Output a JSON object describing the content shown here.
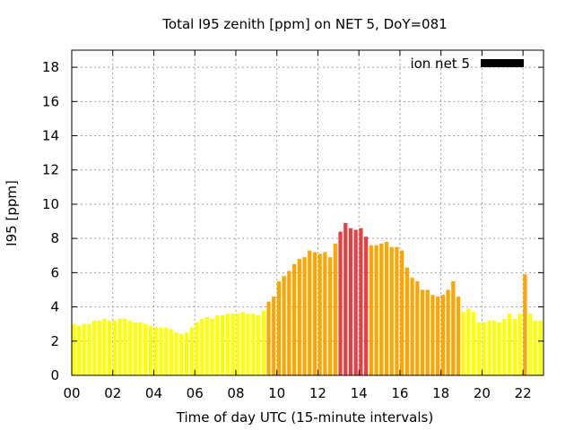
{
  "chart_data": {
    "type": "bar",
    "title": "Total I95 zenith [ppm] on NET 5, DoY=081",
    "xlabel": "Time of day UTC (15-minute intervals)",
    "ylabel": "I95 [ppm]",
    "legend": {
      "label": "ion net 5",
      "position": "top-right",
      "swatch_color": "#000000"
    },
    "xlim": [
      0,
      23
    ],
    "ylim": [
      0,
      19
    ],
    "x_tick_values": [
      0,
      2,
      4,
      6,
      8,
      10,
      12,
      14,
      16,
      18,
      20,
      22
    ],
    "x_tick_labels": [
      "00",
      "02",
      "04",
      "06",
      "08",
      "10",
      "12",
      "14",
      "16",
      "18",
      "20",
      "22"
    ],
    "y_ticks": [
      0,
      2,
      4,
      6,
      8,
      10,
      12,
      14,
      16,
      18
    ],
    "grid": true,
    "bin_hours": 0.25,
    "color_classes": {
      "below_4": "#ffff00",
      "4_to_8": "#ffa500",
      "above_8": "#e84040",
      "spike_at_22h": "#ffa500"
    },
    "values": [
      3.0,
      2.9,
      3.0,
      3.0,
      3.2,
      3.2,
      3.3,
      3.2,
      3.2,
      3.3,
      3.3,
      3.2,
      3.1,
      3.1,
      3.0,
      2.9,
      2.8,
      2.8,
      2.8,
      2.7,
      2.5,
      2.4,
      2.5,
      2.8,
      3.1,
      3.3,
      3.4,
      3.3,
      3.5,
      3.5,
      3.6,
      3.6,
      3.6,
      3.7,
      3.6,
      3.6,
      3.5,
      3.8,
      4.3,
      4.6,
      5.5,
      5.8,
      6.1,
      6.5,
      6.8,
      6.9,
      7.3,
      7.2,
      7.1,
      7.2,
      6.9,
      7.7,
      8.4,
      8.9,
      8.6,
      8.5,
      8.6,
      8.1,
      7.6,
      7.6,
      7.7,
      7.8,
      7.5,
      7.5,
      7.3,
      6.3,
      5.7,
      5.5,
      5.0,
      5.0,
      4.7,
      4.6,
      4.7,
      5.0,
      5.5,
      4.6,
      3.7,
      3.9,
      3.7,
      3.1,
      3.1,
      3.2,
      3.2,
      3.1,
      3.3,
      3.6,
      3.3,
      3.6,
      5.9,
      3.6,
      3.2,
      3.2
    ]
  }
}
